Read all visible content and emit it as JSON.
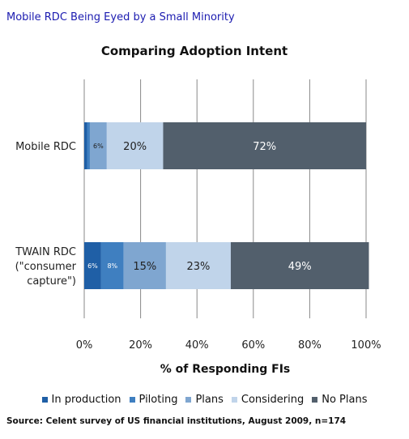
{
  "headline": "Mobile RDC Being Eyed by a Small Minority",
  "source": "Source: Celent survey of US financial institutions, August 2009, n=174",
  "chart_data": {
    "type": "bar",
    "orientation": "horizontal",
    "stacked": true,
    "title": "Comparing Adoption Intent",
    "xlabel": "% of Responding FIs",
    "ylabel": "",
    "xlim": [
      0,
      100
    ],
    "x_ticks": [
      "0%",
      "20%",
      "40%",
      "60%",
      "80%",
      "100%"
    ],
    "grid": true,
    "legend_position": "bottom",
    "categories": [
      [
        "Mobile RDC"
      ],
      [
        "TWAIN RDC",
        "(\"consumer",
        "capture\")"
      ]
    ],
    "series": [
      {
        "name": "In production",
        "color": "#1f5fa6",
        "values": [
          1,
          6
        ],
        "labels": [
          "",
          "6%"
        ]
      },
      {
        "name": "Piloting",
        "color": "#3f7fc0",
        "values": [
          1,
          8
        ],
        "labels": [
          "",
          "8%"
        ]
      },
      {
        "name": "Plans",
        "color": "#7fa6d0",
        "values": [
          6,
          15
        ],
        "labels": [
          "6%",
          "15%"
        ]
      },
      {
        "name": "Considering",
        "color": "#c0d4ea",
        "values": [
          20,
          23
        ],
        "labels": [
          "20%",
          "23%"
        ]
      },
      {
        "name": "No Plans",
        "color": "#525f6c",
        "values": [
          72,
          49
        ],
        "labels": [
          "72%",
          "49%"
        ]
      }
    ]
  }
}
